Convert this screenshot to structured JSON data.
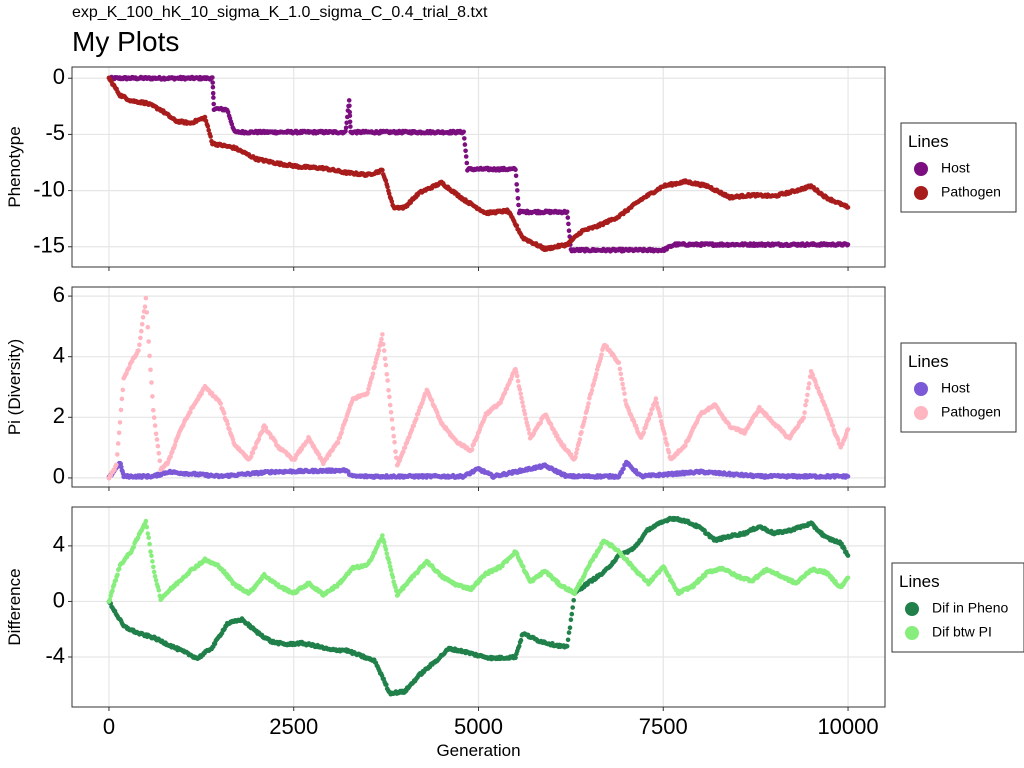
{
  "subtitle": "exp_K_100_hK_10_sigma_K_1.0_sigma_C_0.4_trial_8.txt",
  "title": "My Plots",
  "chart_data": [
    {
      "type": "scatter",
      "ylabel": "Phenotype",
      "xlabel": "",
      "xlim": [
        -500,
        10500
      ],
      "ylim": [
        -16.8,
        1.0
      ],
      "x_ticks": [
        0,
        2500,
        5000,
        7500,
        10000
      ],
      "y_ticks": [
        0,
        -5,
        -10,
        -15
      ],
      "y_tick_labels": [
        "0",
        "-5",
        "-10",
        "-15"
      ],
      "grid": true,
      "legend": {
        "title": "Lines",
        "position": "right"
      },
      "series": [
        {
          "name": "Host",
          "color": "#7b0f7f",
          "points": [
            [
              0,
              0
            ],
            [
              300,
              0
            ],
            [
              1400,
              0
            ],
            [
              1420,
              -2.7
            ],
            [
              1600,
              -2.8
            ],
            [
              1700,
              -4.8
            ],
            [
              2500,
              -4.8
            ],
            [
              3200,
              -4.8
            ],
            [
              3250,
              -2.0
            ],
            [
              3270,
              -4.8
            ],
            [
              4800,
              -4.8
            ],
            [
              4850,
              -8.1
            ],
            [
              5500,
              -8.1
            ],
            [
              5550,
              -11.9
            ],
            [
              6200,
              -11.9
            ],
            [
              6250,
              -15.3
            ],
            [
              6700,
              -15.3
            ],
            [
              7500,
              -15.3
            ],
            [
              7650,
              -14.8
            ],
            [
              9000,
              -14.8
            ],
            [
              10000,
              -14.8
            ]
          ]
        },
        {
          "name": "Pathogen",
          "color": "#a81c1c",
          "points": [
            [
              0,
              0
            ],
            [
              150,
              -1.5
            ],
            [
              300,
              -2.0
            ],
            [
              500,
              -2.2
            ],
            [
              700,
              -2.8
            ],
            [
              900,
              -3.8
            ],
            [
              1100,
              -4.0
            ],
            [
              1300,
              -3.5
            ],
            [
              1400,
              -5.8
            ],
            [
              1700,
              -6.2
            ],
            [
              2000,
              -7.2
            ],
            [
              2300,
              -7.6
            ],
            [
              2600,
              -7.9
            ],
            [
              2900,
              -8.0
            ],
            [
              3200,
              -8.4
            ],
            [
              3500,
              -8.6
            ],
            [
              3700,
              -8.2
            ],
            [
              3850,
              -11.5
            ],
            [
              4000,
              -11.5
            ],
            [
              4200,
              -10.2
            ],
            [
              4500,
              -9.3
            ],
            [
              4800,
              -10.8
            ],
            [
              5100,
              -12.0
            ],
            [
              5400,
              -11.8
            ],
            [
              5600,
              -14.2
            ],
            [
              5900,
              -15.2
            ],
            [
              6200,
              -14.8
            ],
            [
              6400,
              -13.6
            ],
            [
              6600,
              -13.2
            ],
            [
              6900,
              -12.3
            ],
            [
              7200,
              -10.8
            ],
            [
              7500,
              -9.6
            ],
            [
              7800,
              -9.2
            ],
            [
              8100,
              -9.6
            ],
            [
              8400,
              -10.6
            ],
            [
              8700,
              -10.4
            ],
            [
              9000,
              -10.5
            ],
            [
              9300,
              -10.0
            ],
            [
              9500,
              -9.6
            ],
            [
              9700,
              -10.6
            ],
            [
              10000,
              -11.5
            ]
          ]
        }
      ]
    },
    {
      "type": "scatter",
      "ylabel": "Pi (Diversity)",
      "xlabel": "",
      "xlim": [
        -500,
        10500
      ],
      "ylim": [
        -0.3,
        6.3
      ],
      "x_ticks": [
        0,
        2500,
        5000,
        7500,
        10000
      ],
      "y_ticks": [
        0,
        2,
        4,
        6
      ],
      "y_tick_labels": [
        "0",
        "2",
        "4",
        "6"
      ],
      "grid": true,
      "legend": {
        "title": "Lines",
        "position": "right"
      },
      "series": [
        {
          "name": "Host",
          "color": "#7c59d6",
          "points": [
            [
              0,
              0
            ],
            [
              150,
              0.5
            ],
            [
              200,
              0.05
            ],
            [
              600,
              0.05
            ],
            [
              800,
              0.2
            ],
            [
              1500,
              0.05
            ],
            [
              2200,
              0.2
            ],
            [
              3200,
              0.25
            ],
            [
              3300,
              0.05
            ],
            [
              4800,
              0.05
            ],
            [
              5000,
              0.3
            ],
            [
              5200,
              0.05
            ],
            [
              5900,
              0.4
            ],
            [
              6200,
              0.05
            ],
            [
              6900,
              0.05
            ],
            [
              7000,
              0.5
            ],
            [
              7200,
              0.05
            ],
            [
              8000,
              0.2
            ],
            [
              8800,
              0.05
            ],
            [
              10000,
              0.05
            ]
          ]
        },
        {
          "name": "Pathogen",
          "color": "#ffb6c1",
          "points": [
            [
              0,
              0
            ],
            [
              100,
              0.4
            ],
            [
              200,
              3.3
            ],
            [
              300,
              3.8
            ],
            [
              400,
              4.2
            ],
            [
              500,
              5.9
            ],
            [
              600,
              2.2
            ],
            [
              700,
              0.3
            ],
            [
              800,
              0.5
            ],
            [
              950,
              1.5
            ],
            [
              1100,
              2.2
            ],
            [
              1300,
              3.0
            ],
            [
              1500,
              2.5
            ],
            [
              1700,
              1.1
            ],
            [
              1900,
              0.6
            ],
            [
              2100,
              1.7
            ],
            [
              2300,
              1.0
            ],
            [
              2500,
              0.6
            ],
            [
              2700,
              1.3
            ],
            [
              2900,
              0.5
            ],
            [
              3100,
              1.2
            ],
            [
              3300,
              2.6
            ],
            [
              3500,
              2.8
            ],
            [
              3700,
              4.7
            ],
            [
              3900,
              0.4
            ],
            [
              4100,
              1.6
            ],
            [
              4300,
              2.9
            ],
            [
              4500,
              1.8
            ],
            [
              4700,
              1.2
            ],
            [
              4900,
              0.9
            ],
            [
              5100,
              2.1
            ],
            [
              5300,
              2.5
            ],
            [
              5500,
              3.6
            ],
            [
              5700,
              1.3
            ],
            [
              5900,
              2.1
            ],
            [
              6100,
              1.2
            ],
            [
              6300,
              0.6
            ],
            [
              6500,
              2.6
            ],
            [
              6700,
              4.4
            ],
            [
              6900,
              3.8
            ],
            [
              7000,
              2.4
            ],
            [
              7200,
              1.3
            ],
            [
              7400,
              2.6
            ],
            [
              7600,
              0.6
            ],
            [
              7800,
              1.1
            ],
            [
              8000,
              2.1
            ],
            [
              8200,
              2.4
            ],
            [
              8400,
              1.7
            ],
            [
              8600,
              1.5
            ],
            [
              8800,
              2.3
            ],
            [
              9000,
              1.8
            ],
            [
              9200,
              1.3
            ],
            [
              9400,
              2.0
            ],
            [
              9500,
              3.5
            ],
            [
              9700,
              2.3
            ],
            [
              9900,
              1.0
            ],
            [
              10000,
              1.6
            ]
          ]
        }
      ]
    },
    {
      "type": "scatter",
      "ylabel": "Difference",
      "xlabel": "Generation",
      "xlim": [
        -500,
        10500
      ],
      "ylim": [
        -7.6,
        6.8
      ],
      "x_ticks": [
        0,
        2500,
        5000,
        7500,
        10000
      ],
      "x_tick_labels": [
        "0",
        "2500",
        "5000",
        "7500",
        "10000"
      ],
      "y_ticks": [
        4,
        0,
        -4
      ],
      "y_tick_labels": [
        "4",
        "0",
        "-4"
      ],
      "grid": true,
      "legend": {
        "title": "Lines",
        "position": "right"
      },
      "series": [
        {
          "name": "Dif in Pheno",
          "color": "#21804a",
          "points": [
            [
              0,
              0
            ],
            [
              200,
              -1.8
            ],
            [
              400,
              -2.3
            ],
            [
              600,
              -2.6
            ],
            [
              800,
              -3.1
            ],
            [
              1000,
              -3.6
            ],
            [
              1200,
              -4.1
            ],
            [
              1400,
              -3.3
            ],
            [
              1600,
              -1.6
            ],
            [
              1800,
              -1.3
            ],
            [
              2000,
              -2.2
            ],
            [
              2200,
              -2.9
            ],
            [
              2400,
              -3.1
            ],
            [
              2600,
              -3.0
            ],
            [
              2800,
              -3.2
            ],
            [
              3000,
              -3.5
            ],
            [
              3200,
              -3.5
            ],
            [
              3400,
              -3.9
            ],
            [
              3600,
              -4.3
            ],
            [
              3800,
              -6.6
            ],
            [
              4000,
              -6.5
            ],
            [
              4200,
              -5.3
            ],
            [
              4400,
              -4.4
            ],
            [
              4600,
              -3.4
            ],
            [
              4800,
              -3.6
            ],
            [
              5000,
              -3.9
            ],
            [
              5200,
              -4.1
            ],
            [
              5500,
              -4.0
            ],
            [
              5600,
              -2.3
            ],
            [
              5800,
              -2.8
            ],
            [
              6000,
              -3.1
            ],
            [
              6200,
              -3.3
            ],
            [
              6300,
              0.6
            ],
            [
              6500,
              1.4
            ],
            [
              6700,
              2.1
            ],
            [
              6900,
              3.3
            ],
            [
              7100,
              3.8
            ],
            [
              7300,
              5.2
            ],
            [
              7600,
              6.0
            ],
            [
              7800,
              5.8
            ],
            [
              8000,
              5.3
            ],
            [
              8200,
              4.4
            ],
            [
              8400,
              4.7
            ],
            [
              8600,
              4.9
            ],
            [
              8800,
              5.4
            ],
            [
              9000,
              4.9
            ],
            [
              9200,
              5.1
            ],
            [
              9500,
              5.6
            ],
            [
              9700,
              4.6
            ],
            [
              9900,
              4.2
            ],
            [
              10000,
              3.3
            ]
          ]
        },
        {
          "name": "Dif btw PI",
          "color": "#87ee7d",
          "points": [
            [
              0,
              0
            ],
            [
              150,
              2.6
            ],
            [
              300,
              3.6
            ],
            [
              500,
              5.8
            ],
            [
              600,
              2.4
            ],
            [
              700,
              0.2
            ],
            [
              900,
              1.2
            ],
            [
              1100,
              2.2
            ],
            [
              1300,
              3.0
            ],
            [
              1500,
              2.5
            ],
            [
              1700,
              1.2
            ],
            [
              1900,
              0.6
            ],
            [
              2100,
              1.9
            ],
            [
              2300,
              1.1
            ],
            [
              2500,
              0.6
            ],
            [
              2700,
              1.3
            ],
            [
              2900,
              0.5
            ],
            [
              3100,
              1.2
            ],
            [
              3300,
              2.4
            ],
            [
              3500,
              2.6
            ],
            [
              3700,
              4.7
            ],
            [
              3900,
              0.5
            ],
            [
              4100,
              1.7
            ],
            [
              4300,
              2.9
            ],
            [
              4500,
              1.8
            ],
            [
              4700,
              1.2
            ],
            [
              4900,
              0.9
            ],
            [
              5100,
              2.0
            ],
            [
              5300,
              2.5
            ],
            [
              5500,
              3.6
            ],
            [
              5700,
              1.4
            ],
            [
              5900,
              2.2
            ],
            [
              6100,
              1.2
            ],
            [
              6300,
              0.6
            ],
            [
              6500,
              2.6
            ],
            [
              6700,
              4.4
            ],
            [
              6900,
              3.6
            ],
            [
              7100,
              2.4
            ],
            [
              7300,
              1.3
            ],
            [
              7500,
              2.5
            ],
            [
              7700,
              0.6
            ],
            [
              7900,
              1.1
            ],
            [
              8100,
              2.1
            ],
            [
              8300,
              2.4
            ],
            [
              8500,
              1.8
            ],
            [
              8700,
              1.5
            ],
            [
              8900,
              2.3
            ],
            [
              9100,
              1.8
            ],
            [
              9300,
              1.3
            ],
            [
              9500,
              2.3
            ],
            [
              9700,
              2.1
            ],
            [
              9900,
              1.0
            ],
            [
              10000,
              1.7
            ]
          ]
        }
      ]
    }
  ]
}
